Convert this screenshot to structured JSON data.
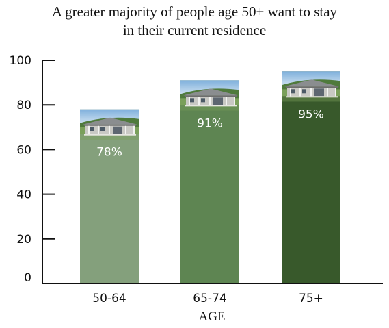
{
  "chart_data": {
    "type": "bar",
    "title_lines": [
      "A greater majority of people age 50+ want to stay",
      "in their current residence"
    ],
    "xlabel": "AGE",
    "ylabel": "",
    "categories": [
      "50-64",
      "65-74",
      "75+"
    ],
    "values": [
      78,
      91,
      95
    ],
    "value_labels": [
      "78%",
      "91%",
      "95%"
    ],
    "ylim": [
      0,
      100
    ],
    "yticks": [
      0,
      20,
      40,
      60,
      80,
      100
    ],
    "grid": false,
    "legend": "none",
    "bar_colors": [
      "#84a07c",
      "#5e8552",
      "#38592b"
    ],
    "bar_image": "house-photo-icon"
  }
}
